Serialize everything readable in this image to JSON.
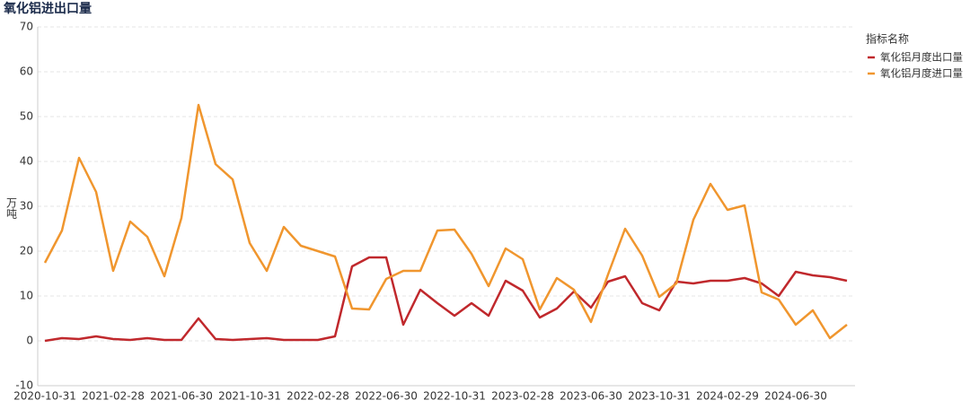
{
  "chart_data": {
    "type": "line",
    "title": "氧化铝进出口量",
    "y_label": "万吨",
    "legend_title": "指标名称",
    "categories": [
      "2020-10-31",
      null,
      null,
      null,
      "2021-02-28",
      null,
      null,
      null,
      "2021-06-30",
      null,
      null,
      null,
      "2021-10-31",
      null,
      null,
      null,
      "2022-02-28",
      null,
      null,
      null,
      "2022-06-30",
      null,
      null,
      null,
      "2022-10-31",
      null,
      null,
      null,
      "2023-02-28",
      null,
      null,
      null,
      "2023-06-30",
      null,
      null,
      null,
      "2023-10-31",
      null,
      null,
      null,
      "2024-02-29",
      null,
      null,
      null,
      "2024-06-30",
      null,
      null,
      null
    ],
    "series": [
      {
        "name": "氧化铝月度出口量",
        "color": "#c0282c",
        "values": [
          0,
          0.6,
          0.4,
          1,
          0.4,
          0.2,
          0.6,
          0.2,
          0.2,
          5,
          0.4,
          0.2,
          0.4,
          0.6,
          0.2,
          0.2,
          0.2,
          1,
          16.6,
          18.6,
          18.6,
          3.6,
          11.4,
          8.4,
          5.6,
          8.4,
          5.6,
          13.4,
          11.2,
          5.2,
          7.2,
          11,
          7.4,
          13.2,
          14.4,
          8.4,
          6.8,
          13.2,
          12.8,
          13.4,
          13.4,
          14,
          12.8,
          10,
          15.4,
          14.6,
          14.2,
          13.4
        ]
      },
      {
        "name": "氧化铝月度进口量",
        "color": "#f0962e",
        "values": [
          17.4,
          24.6,
          40.8,
          33.2,
          15.6,
          26.6,
          23.2,
          14.4,
          27.4,
          52.6,
          39.4,
          36,
          21.8,
          15.6,
          25.4,
          21.2,
          20,
          18.8,
          7.2,
          7,
          13.8,
          15.6,
          15.6,
          24.6,
          24.8,
          19.4,
          12.2,
          20.6,
          18.2,
          7,
          14,
          11.4,
          4.2,
          14.8,
          25,
          19,
          9.8,
          12.8,
          27,
          35,
          29.2,
          30.2,
          10.8,
          9.2,
          3.6,
          6.8,
          0.6,
          3.6
        ]
      }
    ],
    "ylim": [
      -10,
      70
    ],
    "yticks": [
      -10,
      0,
      10,
      20,
      30,
      40,
      50,
      60,
      70
    ],
    "grid": true,
    "legend": "top-right"
  }
}
